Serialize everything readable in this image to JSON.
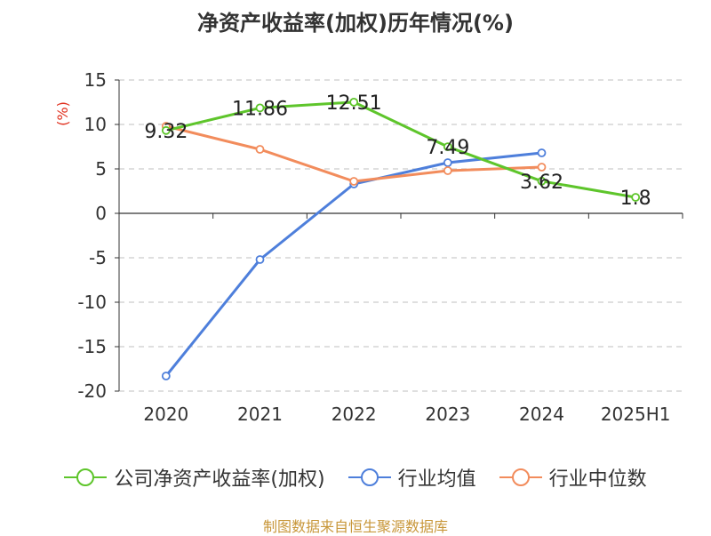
{
  "chart_data": {
    "type": "line",
    "title": "净资产收益率(加权)历年情况(%)",
    "ylabel": "(%)",
    "categories": [
      "2020",
      "2021",
      "2022",
      "2023",
      "2024",
      "2025H1"
    ],
    "ylim": [
      -20,
      15
    ],
    "yticks": [
      15,
      10,
      5,
      0,
      -5,
      -10,
      -15,
      -20
    ],
    "grid": true,
    "legend_position": "bottom",
    "series": [
      {
        "name": "公司净资产收益率(加权)",
        "color": "#5ec52b",
        "values": [
          9.32,
          11.86,
          12.51,
          7.49,
          3.62,
          1.8
        ],
        "labels": [
          "9.32",
          "11.86",
          "12.51",
          "7.49",
          "3.62",
          "1.8"
        ]
      },
      {
        "name": "行业均值",
        "color": "#4e7fdb",
        "values": [
          -18.3,
          -5.2,
          3.3,
          5.7,
          6.8,
          null
        ]
      },
      {
        "name": "行业中位数",
        "color": "#f28c5c",
        "values": [
          9.8,
          7.2,
          3.6,
          4.8,
          5.2,
          null
        ]
      }
    ]
  },
  "source": "制图数据来自恒生聚源数据库"
}
